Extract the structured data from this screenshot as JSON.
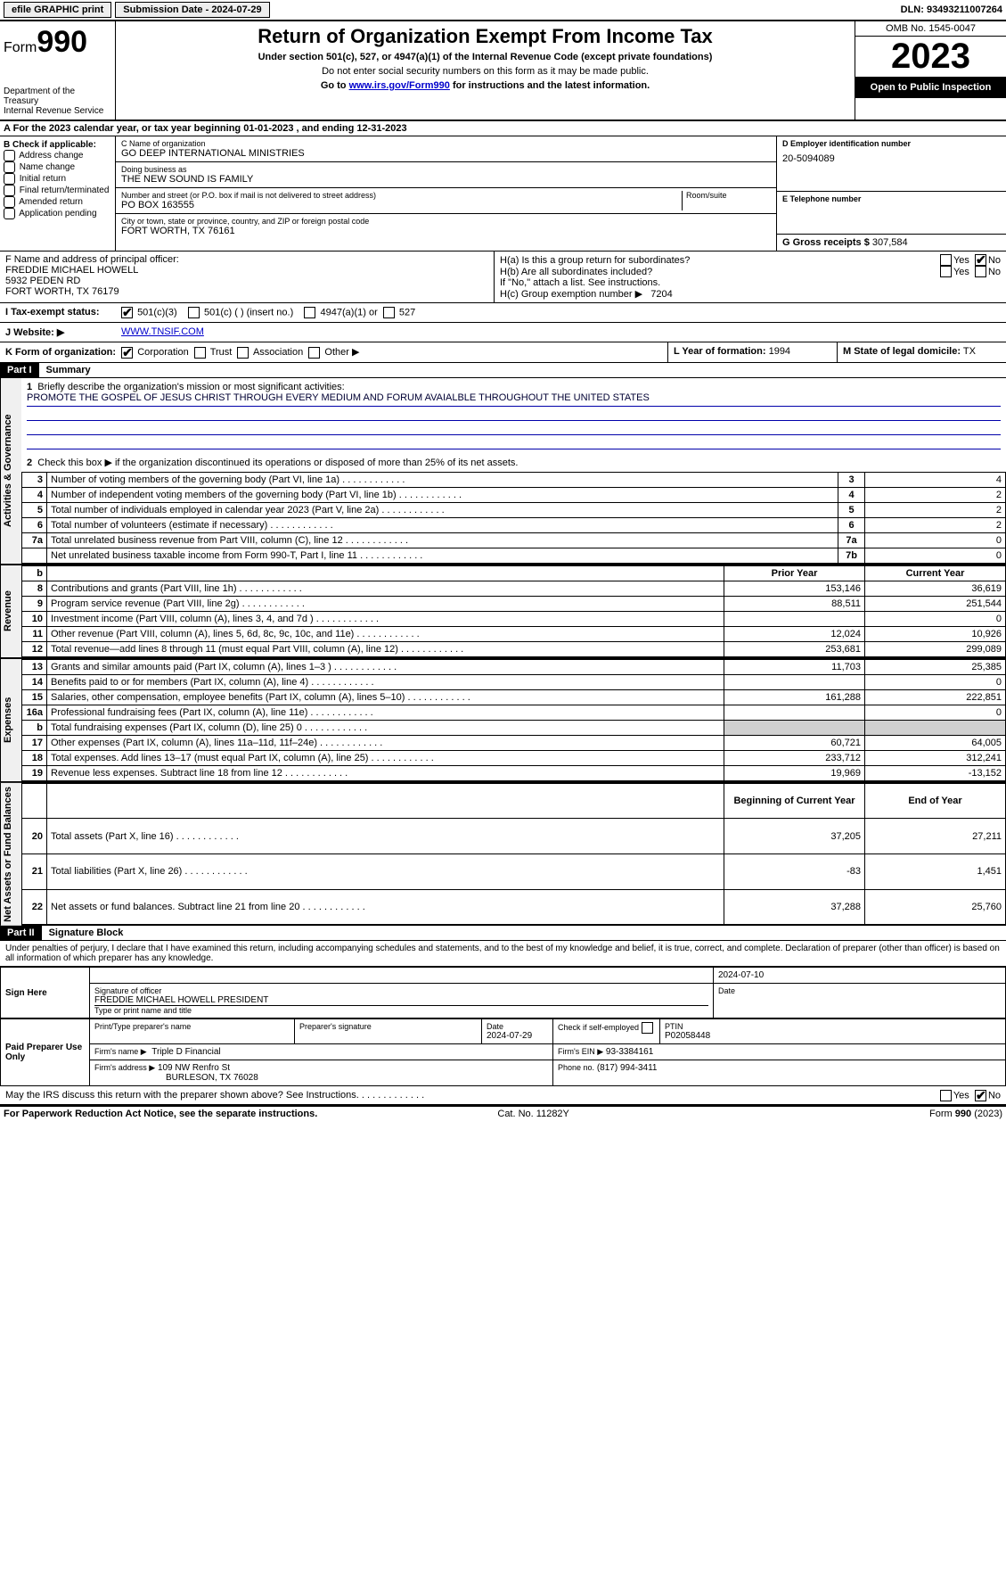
{
  "topbar": {
    "efile": "efile GRAPHIC print",
    "submission": "Submission Date - 2024-07-29",
    "dln": "DLN: 93493211007264"
  },
  "header": {
    "form": "Form",
    "formno": "990",
    "title": "Return of Organization Exempt From Income Tax",
    "subtitle": "Under section 501(c), 527, or 4947(a)(1) of the Internal Revenue Code (except private foundations)",
    "note1": "Do not enter social security numbers on this form as it may be made public.",
    "note2_pre": "Go to ",
    "note2_link": "www.irs.gov/Form990",
    "note2_post": " for instructions and the latest information.",
    "dept": "Department of the Treasury",
    "irs": "Internal Revenue Service",
    "omb": "OMB No. 1545-0047",
    "year": "2023",
    "open": "Open to Public Inspection"
  },
  "lineA": "For the 2023 calendar year, or tax year beginning 01-01-2023   , and ending 12-31-2023",
  "boxB": {
    "title": "B Check if applicable:",
    "items": [
      "Address change",
      "Name change",
      "Initial return",
      "Final return/terminated",
      "Amended return",
      "Application pending"
    ]
  },
  "boxC": {
    "name_lbl": "C Name of organization",
    "name": "GO DEEP INTERNATIONAL MINISTRIES",
    "dba_lbl": "Doing business as",
    "dba": "THE NEW SOUND IS FAMILY",
    "street_lbl": "Number and street (or P.O. box if mail is not delivered to street address)",
    "street": "PO BOX 163555",
    "room_lbl": "Room/suite",
    "city_lbl": "City or town, state or province, country, and ZIP or foreign postal code",
    "city": "FORT WORTH, TX  76161"
  },
  "boxD": {
    "lbl": "D Employer identification number",
    "val": "20-5094089"
  },
  "boxE": {
    "lbl": "E Telephone number",
    "val": ""
  },
  "boxG": {
    "lbl": "G Gross receipts $",
    "val": "307,584"
  },
  "boxF": {
    "lbl": "F  Name and address of principal officer:",
    "name": "FREDDIE MICHAEL HOWELL",
    "addr1": "5932 PEDEN RD",
    "addr2": "FORT WORTH, TX  76179"
  },
  "boxH": {
    "a": "H(a)  Is this a group return for subordinates?",
    "b": "H(b)  Are all subordinates included?",
    "bnote": "If \"No,\" attach a list. See instructions.",
    "c_lbl": "H(c)  Group exemption number ▶",
    "c_val": "7204"
  },
  "rowI": {
    "lbl": "I   Tax-exempt status:",
    "o1": "501(c)(3)",
    "o2": "501(c) (  ) (insert no.)",
    "o3": "4947(a)(1) or",
    "o4": "527"
  },
  "rowJ": {
    "lbl": "J   Website: ▶",
    "val": "WWW.TNSIF.COM"
  },
  "rowK": {
    "lbl": "K Form of organization:",
    "o1": "Corporation",
    "o2": "Trust",
    "o3": "Association",
    "o4": "Other ▶"
  },
  "rowL": {
    "lbl": "L Year of formation:",
    "val": "1994"
  },
  "rowM": {
    "lbl": "M State of legal domicile:",
    "val": "TX"
  },
  "part1": {
    "hdr": "Part I",
    "title": "Summary"
  },
  "summary": {
    "vlabels": {
      "ag": "Activities & Governance",
      "rev": "Revenue",
      "exp": "Expenses",
      "na": "Net Assets or Fund Balances"
    },
    "l1": "Briefly describe the organization's mission or most significant activities:",
    "mission": "PROMOTE THE GOSPEL OF JESUS CHRIST THROUGH EVERY MEDIUM AND FORUM AVAIALBLE THROUGHOUT THE UNITED STATES",
    "l2": "Check this box ▶        if the organization discontinued its operations or disposed of more than 25% of its net assets.",
    "rows_gov": [
      {
        "n": "3",
        "t": "Number of voting members of the governing body (Part VI, line 1a)",
        "b": "3",
        "v": "4"
      },
      {
        "n": "4",
        "t": "Number of independent voting members of the governing body (Part VI, line 1b)",
        "b": "4",
        "v": "2"
      },
      {
        "n": "5",
        "t": "Total number of individuals employed in calendar year 2023 (Part V, line 2a)",
        "b": "5",
        "v": "2"
      },
      {
        "n": "6",
        "t": "Total number of volunteers (estimate if necessary)",
        "b": "6",
        "v": "2"
      },
      {
        "n": "7a",
        "t": "Total unrelated business revenue from Part VIII, column (C), line 12",
        "b": "7a",
        "v": "0"
      },
      {
        "n": "",
        "t": "Net unrelated business taxable income from Form 990-T, Part I, line 11",
        "b": "7b",
        "v": "0"
      }
    ],
    "col_b": "b",
    "col_prior": "Prior Year",
    "col_curr": "Current Year",
    "rows_rev": [
      {
        "n": "8",
        "t": "Contributions and grants (Part VIII, line 1h)",
        "p": "153,146",
        "c": "36,619"
      },
      {
        "n": "9",
        "t": "Program service revenue (Part VIII, line 2g)",
        "p": "88,511",
        "c": "251,544"
      },
      {
        "n": "10",
        "t": "Investment income (Part VIII, column (A), lines 3, 4, and 7d )",
        "p": "",
        "c": "0"
      },
      {
        "n": "11",
        "t": "Other revenue (Part VIII, column (A), lines 5, 6d, 8c, 9c, 10c, and 11e)",
        "p": "12,024",
        "c": "10,926"
      },
      {
        "n": "12",
        "t": "Total revenue—add lines 8 through 11 (must equal Part VIII, column (A), line 12)",
        "p": "253,681",
        "c": "299,089"
      }
    ],
    "rows_exp": [
      {
        "n": "13",
        "t": "Grants and similar amounts paid (Part IX, column (A), lines 1–3 )",
        "p": "11,703",
        "c": "25,385"
      },
      {
        "n": "14",
        "t": "Benefits paid to or for members (Part IX, column (A), line 4)",
        "p": "",
        "c": "0"
      },
      {
        "n": "15",
        "t": "Salaries, other compensation, employee benefits (Part IX, column (A), lines 5–10)",
        "p": "161,288",
        "c": "222,851"
      },
      {
        "n": "16a",
        "t": "Professional fundraising fees (Part IX, column (A), line 11e)",
        "p": "",
        "c": "0"
      },
      {
        "n": "b",
        "t": "Total fundraising expenses (Part IX, column (D), line 25) 0",
        "p": "SHADE",
        "c": "SHADE"
      },
      {
        "n": "17",
        "t": "Other expenses (Part IX, column (A), lines 11a–11d, 11f–24e)",
        "p": "60,721",
        "c": "64,005"
      },
      {
        "n": "18",
        "t": "Total expenses. Add lines 13–17 (must equal Part IX, column (A), line 25)",
        "p": "233,712",
        "c": "312,241"
      },
      {
        "n": "19",
        "t": "Revenue less expenses. Subtract line 18 from line 12",
        "p": "19,969",
        "c": "-13,152"
      }
    ],
    "col_beg": "Beginning of Current Year",
    "col_end": "End of Year",
    "rows_na": [
      {
        "n": "20",
        "t": "Total assets (Part X, line 16)",
        "p": "37,205",
        "c": "27,211"
      },
      {
        "n": "21",
        "t": "Total liabilities (Part X, line 26)",
        "p": "-83",
        "c": "1,451"
      },
      {
        "n": "22",
        "t": "Net assets or fund balances. Subtract line 21 from line 20",
        "p": "37,288",
        "c": "25,760"
      }
    ]
  },
  "part2": {
    "hdr": "Part II",
    "title": "Signature Block"
  },
  "penalties": "Under penalties of perjury, I declare that I have examined this return, including accompanying schedules and statements, and to the best of my knowledge and belief, it is true, correct, and complete. Declaration of preparer (other than officer) is based on all information of which preparer has any knowledge.",
  "sign": {
    "here": "Sign Here",
    "date": "2024-07-10",
    "sig_lbl": "Signature of officer",
    "officer": "FREDDIE MICHAEL HOWELL  PRESIDENT",
    "type_lbl": "Type or print name and title",
    "date_lbl": "Date"
  },
  "paid": {
    "title": "Paid Preparer Use Only",
    "pname_lbl": "Print/Type preparer's name",
    "psig_lbl": "Preparer's signature",
    "pdate_lbl": "Date",
    "pdate": "2024-07-29",
    "check_lbl": "Check         if self-employed",
    "ptin_lbl": "PTIN",
    "ptin": "P02058448",
    "firm_lbl": "Firm's name    ▶",
    "firm": "Triple D Financial",
    "ein_lbl": "Firm's EIN ▶",
    "ein": "93-3384161",
    "addr_lbl": "Firm's address ▶",
    "addr1": "109 NW Renfro St",
    "addr2": "BURLESON, TX  76028",
    "phone_lbl": "Phone no.",
    "phone": "(817) 994-3411"
  },
  "discuss": "May the IRS discuss this return with the preparer shown above? See Instructions.",
  "footer": {
    "l": "For Paperwork Reduction Act Notice, see the separate instructions.",
    "c": "Cat. No. 11282Y",
    "r": "Form 990 (2023)"
  },
  "yesno": {
    "yes": "Yes",
    "no": "No"
  }
}
